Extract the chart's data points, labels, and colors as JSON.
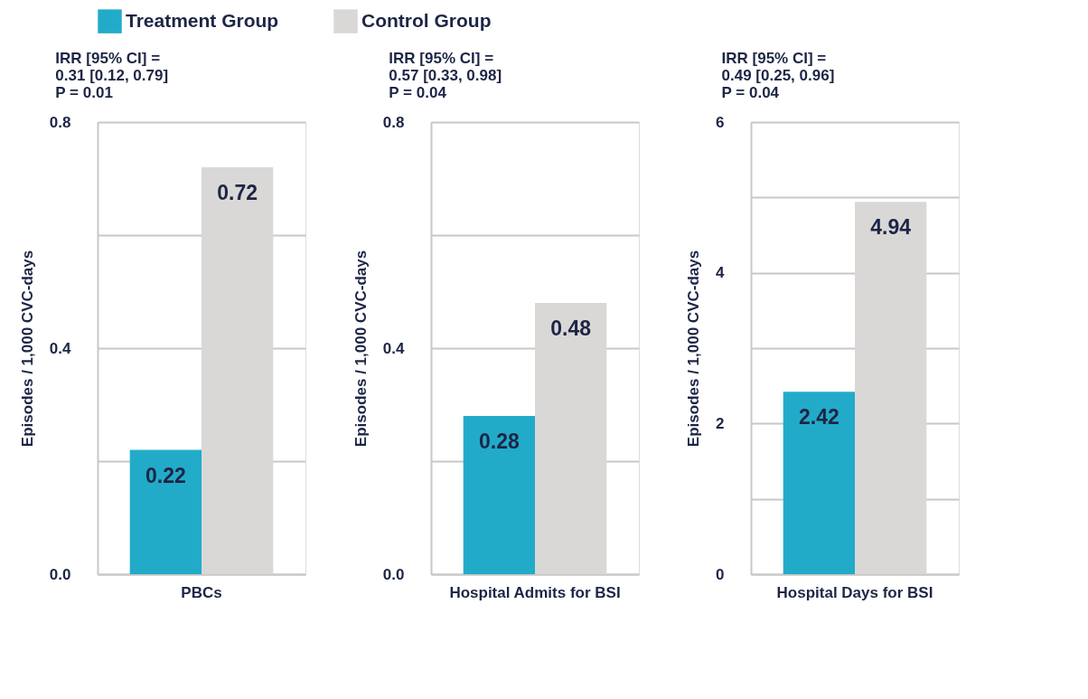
{
  "chart_data": [
    {
      "type": "bar",
      "title": "IRR [95% CI] =\n0.31 [0.12, 0.79]\nP = 0.01",
      "ylabel": "Episodes / 1,000 CVC-days",
      "categories": [
        "PBCs"
      ],
      "series": [
        {
          "name": "Treatment Group",
          "color": "#22abc9",
          "values": [
            0.22
          ]
        },
        {
          "name": "Control Group",
          "color": "#d9d8d6",
          "values": [
            0.72
          ]
        }
      ],
      "ylim": [
        0,
        0.8
      ],
      "yticks": [
        {
          "value": 0,
          "label": "0.0"
        },
        {
          "value": 0.2,
          "label": null
        },
        0.4,
        {
          "value": 0.6,
          "label": null
        },
        0.8
      ],
      "grid": "y",
      "data_labels": true,
      "legend": "top"
    },
    {
      "type": "bar",
      "title": "IRR [95% CI] =\n0.57 [0.33, 0.98]\nP = 0.04",
      "ylabel": "Episodes / 1,000 CVC-days",
      "categories": [
        "Hospital Admits for BSI"
      ],
      "series": [
        {
          "name": "Treatment Group",
          "color": "#22abc9",
          "values": [
            0.28
          ]
        },
        {
          "name": "Control Group",
          "color": "#d9d8d6",
          "values": [
            0.48
          ]
        }
      ],
      "ylim": [
        0,
        0.8
      ],
      "yticks": [
        {
          "value": 0,
          "label": "0.0"
        },
        {
          "value": 0.2,
          "label": null
        },
        0.4,
        {
          "value": 0.6,
          "label": null
        },
        0.8
      ],
      "grid": "y",
      "data_labels": true
    },
    {
      "type": "bar",
      "title": "IRR [95% CI] =\n0.49 [0.25, 0.96]\nP = 0.04",
      "ylabel": "Episodes / 1,000 CVC-days",
      "categories": [
        "Hospital Days for BSI"
      ],
      "series": [
        {
          "name": "Treatment Group",
          "color": "#22abc9",
          "values": [
            2.42
          ]
        },
        {
          "name": "Control Group",
          "color": "#d9d8d6",
          "values": [
            4.94
          ]
        }
      ],
      "ylim": [
        0,
        6
      ],
      "yticks": [
        0,
        {
          "value": 1,
          "label": null
        },
        2,
        {
          "value": 3,
          "label": null
        },
        4,
        {
          "value": 5,
          "label": null
        },
        6
      ],
      "grid": "y",
      "data_labels": true
    }
  ]
}
